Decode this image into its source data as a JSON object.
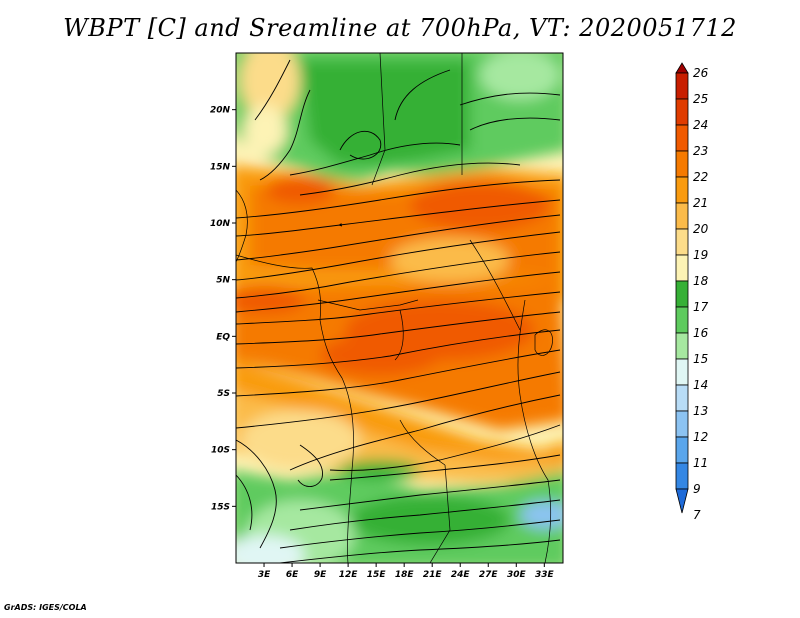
{
  "title": "WBPT [C] and Sreamline at 700hPa, VT: 2020051712",
  "credit": "GrADS: IGES/COLA",
  "map": {
    "lon_range": [
      0,
      35
    ],
    "lat_range": [
      -20,
      25
    ],
    "lat_ticks": [
      {
        "label": "20N",
        "lat": 20
      },
      {
        "label": "15N",
        "lat": 15
      },
      {
        "label": "10N",
        "lat": 10
      },
      {
        "label": "5N",
        "lat": 5
      },
      {
        "label": "EQ",
        "lat": 0
      },
      {
        "label": "5S",
        "lat": -5
      },
      {
        "label": "10S",
        "lat": -10
      },
      {
        "label": "15S",
        "lat": -15
      }
    ],
    "lon_ticks": [
      {
        "label": "3E",
        "lon": 3
      },
      {
        "label": "6E",
        "lon": 6
      },
      {
        "label": "9E",
        "lon": 9
      },
      {
        "label": "12E",
        "lon": 12
      },
      {
        "label": "15E",
        "lon": 15
      },
      {
        "label": "18E",
        "lon": 18
      },
      {
        "label": "21E",
        "lon": 21
      },
      {
        "label": "24E",
        "lon": 24
      },
      {
        "label": "27E",
        "lon": 27
      },
      {
        "label": "30E",
        "lon": 30
      },
      {
        "label": "33E",
        "lon": 33
      }
    ]
  },
  "colorbar": {
    "levels": [
      "26",
      "25",
      "24",
      "23",
      "22",
      "21",
      "20",
      "19",
      "18",
      "17",
      "16",
      "15",
      "14",
      "13",
      "12",
      "11",
      "9",
      "7"
    ],
    "colors": [
      "#a00000",
      "#c81e00",
      "#e03c00",
      "#f05a00",
      "#f57a00",
      "#f99b10",
      "#fbbb4a",
      "#fcdc8a",
      "#fdf3b5",
      "#36b036",
      "#5ecb5e",
      "#a6e8a0",
      "#e0f6f4",
      "#b8dcf6",
      "#8cc3f2",
      "#5aa6ec",
      "#3487e4",
      "#1e6ad8"
    ]
  }
}
